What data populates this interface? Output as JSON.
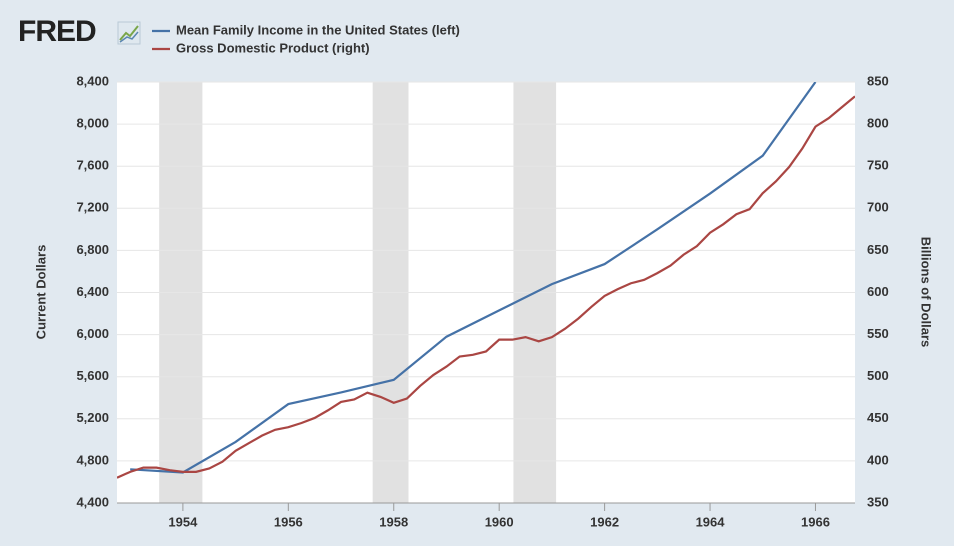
{
  "chart_data": {
    "type": "line",
    "logo": "FRED",
    "ylabel": "Current Dollars",
    "y2label": "Billions of Dollars",
    "xlim": [
      1952.75,
      1966.75
    ],
    "xticks": [
      1954,
      1956,
      1958,
      1960,
      1962,
      1964,
      1966
    ],
    "ylim": [
      4400,
      8400
    ],
    "yticks": [
      {
        "value": 4400,
        "label": "4,400"
      },
      {
        "value": 4800,
        "label": "4,800"
      },
      {
        "value": 5200,
        "label": "5,200"
      },
      {
        "value": 5600,
        "label": "5,600"
      },
      {
        "value": 6000,
        "label": "6,000"
      },
      {
        "value": 6400,
        "label": "6,400"
      },
      {
        "value": 6800,
        "label": "6,800"
      },
      {
        "value": 7200,
        "label": "7,200"
      },
      {
        "value": 7600,
        "label": "7,600"
      },
      {
        "value": 8000,
        "label": "8,000"
      },
      {
        "value": 8400,
        "label": "8,400"
      }
    ],
    "y2lim": [
      350,
      850
    ],
    "y2ticks": [
      350,
      400,
      450,
      500,
      550,
      600,
      650,
      700,
      750,
      800,
      850
    ],
    "grid": true,
    "recessions": [
      {
        "start": 1953.55,
        "end": 1954.37
      },
      {
        "start": 1957.6,
        "end": 1958.28
      },
      {
        "start": 1960.27,
        "end": 1961.08
      }
    ],
    "series": [
      {
        "name": "Mean Family Income in the United States (left)",
        "color": "#4572a7",
        "axis": "y",
        "x": [
          1953,
          1954,
          1955,
          1956,
          1957,
          1958,
          1959,
          1960,
          1961,
          1962,
          1963,
          1964,
          1965,
          1966
        ],
        "values": [
          4720,
          4690,
          4980,
          5340,
          5450,
          5570,
          5980,
          6230,
          6480,
          6670,
          7000,
          7340,
          7700,
          8400
        ]
      },
      {
        "name": "Gross Domestic Product (right)",
        "color": "#aa4643",
        "axis": "y2",
        "x": [
          1952.75,
          1953,
          1953.25,
          1953.5,
          1953.75,
          1954,
          1954.25,
          1954.5,
          1954.75,
          1955,
          1955.25,
          1955.5,
          1955.75,
          1956,
          1956.25,
          1956.5,
          1956.75,
          1957,
          1957.25,
          1957.5,
          1957.75,
          1958,
          1958.25,
          1958.5,
          1958.75,
          1959,
          1959.25,
          1959.5,
          1959.75,
          1960,
          1960.25,
          1960.5,
          1960.75,
          1961,
          1961.25,
          1961.5,
          1961.75,
          1962,
          1962.25,
          1962.5,
          1962.75,
          1963,
          1963.25,
          1963.5,
          1963.75,
          1964,
          1964.25,
          1964.5,
          1964.75,
          1965,
          1965.25,
          1965.5,
          1965.75,
          1966,
          1966.25,
          1966.5,
          1966.75
        ],
        "values": [
          380,
          387,
          392,
          392,
          389,
          387,
          387,
          391,
          399,
          412,
          421,
          430,
          437,
          440,
          445,
          451,
          460,
          470,
          473,
          481,
          476,
          469,
          474,
          489,
          502,
          512,
          524,
          526,
          530,
          544,
          544,
          547,
          542,
          547,
          557,
          569,
          583,
          596,
          604,
          611,
          615,
          623,
          632,
          645,
          655,
          671,
          681,
          693,
          699,
          718,
          732,
          749,
          771,
          797,
          807,
          820,
          833
        ]
      }
    ]
  }
}
